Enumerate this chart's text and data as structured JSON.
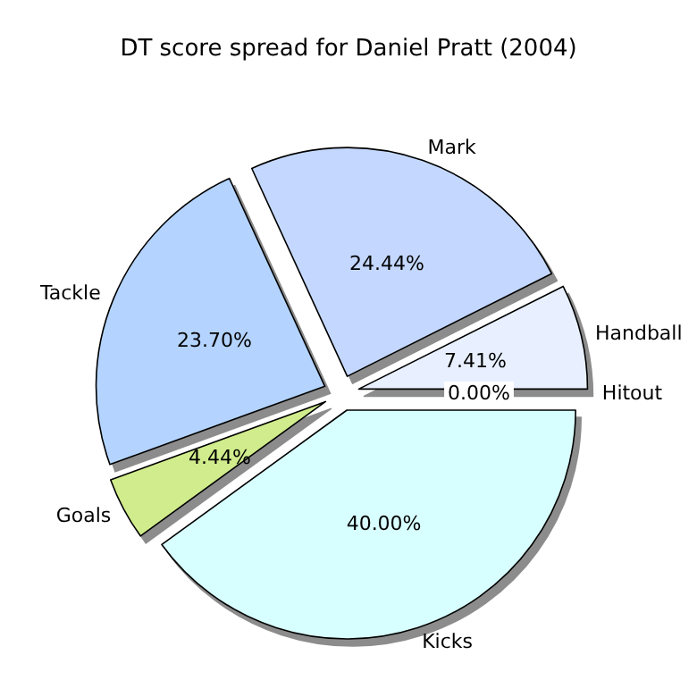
{
  "chart_data": {
    "type": "pie",
    "title": "DT score spread for Daniel Pratt (2004)",
    "categories": [
      "Handball",
      "Mark",
      "Tackle",
      "Goals",
      "Kicks",
      "Hitout"
    ],
    "values": [
      7.41,
      24.44,
      23.7,
      4.44,
      40.0,
      0.0
    ],
    "colors": [
      "#e8f0ff",
      "#c4d8ff",
      "#b4d4ff",
      "#d0ec8c",
      "#d8ffff",
      "#ffffff"
    ],
    "value_labels": [
      "7.41%",
      "24.44%",
      "23.70%",
      "4.44%",
      "40.00%",
      "0.00%"
    ],
    "legend": false
  }
}
